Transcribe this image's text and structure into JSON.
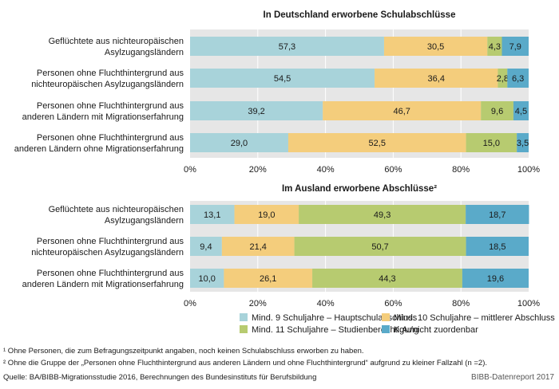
{
  "chart_data": [
    {
      "type": "bar",
      "orientation": "horizontal",
      "stacked": true,
      "title": "In Deutschland erworbene Schulabschlüsse",
      "categories": [
        [
          "Geflüchtete aus nichteuropäischen",
          "Asylzugangsländern"
        ],
        [
          "Personen ohne Fluchthintergrund aus",
          "nichteuropäischen Asylzugangsländern"
        ],
        [
          "Personen ohne Fluchthintergrund aus",
          "anderen Ländern mit Migrationserfahrung"
        ],
        [
          "Personen ohne Fluchthintergrund aus",
          "anderen Ländern ohne Migrationserfahrung"
        ]
      ],
      "series": [
        {
          "name": "Mind. 9 Schuljahre – Hauptschulabschluss",
          "values": [
            57.3,
            54.5,
            39.2,
            29.0
          ],
          "labels": [
            "57,3",
            "54,5",
            "39,2",
            "29,0"
          ]
        },
        {
          "name": "Mind. 10 Schuljahre – mittlerer Abschluss",
          "values": [
            30.5,
            36.4,
            46.7,
            52.5
          ],
          "labels": [
            "30,5",
            "36,4",
            "46,7",
            "52,5"
          ]
        },
        {
          "name": "Mind. 11 Schuljahre – Studienberechtigung",
          "values": [
            4.3,
            2.8,
            9.6,
            15.0
          ],
          "labels": [
            "4,3",
            "2,8",
            "9,6",
            "15,0"
          ]
        },
        {
          "name": "K.A./nicht zuordenbar",
          "values": [
            7.9,
            6.3,
            4.5,
            3.5
          ],
          "labels": [
            "7,9",
            "6,3",
            "4,5",
            "3,5"
          ]
        }
      ],
      "xlim": [
        0,
        100
      ],
      "xticks": [
        "0%",
        "20%",
        "40%",
        "60%",
        "80%",
        "100%"
      ],
      "grid": true
    },
    {
      "type": "bar",
      "orientation": "horizontal",
      "stacked": true,
      "title": "Im Ausland erworbene Abschlüsse²",
      "categories": [
        [
          "Geflüchtete aus nichteuropäischen",
          "Asylzugangsländern"
        ],
        [
          "Personen ohne Fluchthintergrund aus",
          "nichteuropäischen Asylzugangsländern"
        ],
        [
          "Personen ohne Fluchthintergrund aus",
          "anderen Ländern mit Migrationserfahrung"
        ]
      ],
      "series": [
        {
          "name": "Mind. 9 Schuljahre – Hauptschulabschluss",
          "values": [
            13.1,
            9.4,
            10.0
          ],
          "labels": [
            "13,1",
            "9,4",
            "10,0"
          ]
        },
        {
          "name": "Mind. 10 Schuljahre – mittlerer Abschluss",
          "values": [
            19.0,
            21.4,
            26.1
          ],
          "labels": [
            "19,0",
            "21,4",
            "26,1"
          ]
        },
        {
          "name": "Mind. 11 Schuljahre – Studienberechtigung",
          "values": [
            49.3,
            50.7,
            44.3
          ],
          "labels": [
            "49,3",
            "50,7",
            "44,3"
          ]
        },
        {
          "name": "K.A./nicht zuordenbar",
          "values": [
            18.7,
            18.5,
            19.6
          ],
          "labels": [
            "18,7",
            "18,5",
            "19,6"
          ]
        }
      ],
      "xlim": [
        0,
        100
      ],
      "xticks": [
        "0%",
        "20%",
        "40%",
        "60%",
        "80%",
        "100%"
      ],
      "grid": true
    }
  ],
  "legend": {
    "placement": "bottom",
    "items": [
      {
        "label": "Mind. 9 Schuljahre – Hauptschulabschluss",
        "color": "#a8d3da"
      },
      {
        "label": "Mind. 10 Schuljahre – mittlerer Abschluss",
        "color": "#f4cd7c"
      },
      {
        "label": "Mind. 11 Schuljahre – Studienberechtigung",
        "color": "#b7cb70"
      },
      {
        "label": "K.A./nicht zuordenbar",
        "color": "#5aaac9"
      }
    ]
  },
  "colors": {
    "background": "#e6e6e6",
    "gridline": "#ffffff",
    "series": [
      "#a8d3da",
      "#f4cd7c",
      "#b7cb70",
      "#5aaac9"
    ]
  },
  "footnotes": [
    "¹ Ohne Personen, die zum Befragungszeitpunkt angaben, noch keinen Schulabschluss erworben zu haben.",
    "² Ohne die Gruppe der „Personen ohne Fluchthintergrund aus anderen Ländern und ohne Fluchthintergrund“ aufgrund zu kleiner Fallzahl (n =2)."
  ],
  "source": "Quelle: BA/BIBB-Migrationsstudie 2016, Berechnungen des Bundesinstituts für Berufsbildung",
  "credit": "BIBB-Datenreport 2017"
}
